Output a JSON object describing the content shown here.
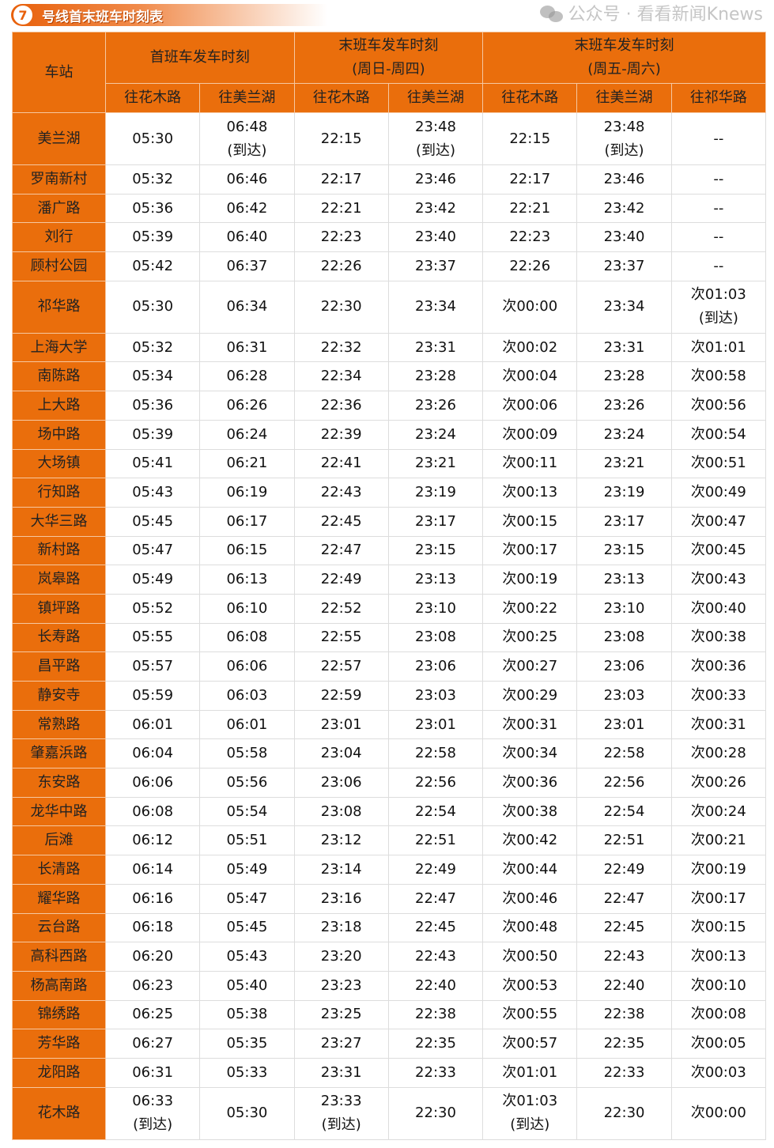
{
  "title": {
    "number": "7",
    "text": "号线首末班车时刻表"
  },
  "headers": {
    "station": "车站",
    "first": "首班车发车时刻",
    "last_weekday": "末班车发车时刻\n(周日-周四)",
    "last_weekend": "末班车发车时刻\n(周五-周六)",
    "sub": [
      "往花木路",
      "往美兰湖",
      "往花木路",
      "往美兰湖",
      "往花木路",
      "往美兰湖",
      "往祁华路"
    ]
  },
  "rows": [
    [
      "美兰湖",
      "05:30",
      "06:48\n(到达)",
      "22:15",
      "23:48\n(到达)",
      "22:15",
      "23:48\n(到达)",
      "--"
    ],
    [
      "罗南新村",
      "05:32",
      "06:46",
      "22:17",
      "23:46",
      "22:17",
      "23:46",
      "--"
    ],
    [
      "潘广路",
      "05:36",
      "06:42",
      "22:21",
      "23:42",
      "22:21",
      "23:42",
      "--"
    ],
    [
      "刘行",
      "05:39",
      "06:40",
      "22:23",
      "23:40",
      "22:23",
      "23:40",
      "--"
    ],
    [
      "顾村公园",
      "05:42",
      "06:37",
      "22:26",
      "23:37",
      "22:26",
      "23:37",
      "--"
    ],
    [
      "祁华路",
      "05:30",
      "06:34",
      "22:30",
      "23:34",
      "次00:00",
      "23:34",
      "次01:03\n(到达)"
    ],
    [
      "上海大学",
      "05:32",
      "06:31",
      "22:32",
      "23:31",
      "次00:02",
      "23:31",
      "次01:01"
    ],
    [
      "南陈路",
      "05:34",
      "06:28",
      "22:34",
      "23:28",
      "次00:04",
      "23:28",
      "次00:58"
    ],
    [
      "上大路",
      "05:36",
      "06:26",
      "22:36",
      "23:26",
      "次00:06",
      "23:26",
      "次00:56"
    ],
    [
      "场中路",
      "05:39",
      "06:24",
      "22:39",
      "23:24",
      "次00:09",
      "23:24",
      "次00:54"
    ],
    [
      "大场镇",
      "05:41",
      "06:21",
      "22:41",
      "23:21",
      "次00:11",
      "23:21",
      "次00:51"
    ],
    [
      "行知路",
      "05:43",
      "06:19",
      "22:43",
      "23:19",
      "次00:13",
      "23:19",
      "次00:49"
    ],
    [
      "大华三路",
      "05:45",
      "06:17",
      "22:45",
      "23:17",
      "次00:15",
      "23:17",
      "次00:47"
    ],
    [
      "新村路",
      "05:47",
      "06:15",
      "22:47",
      "23:15",
      "次00:17",
      "23:15",
      "次00:45"
    ],
    [
      "岚皋路",
      "05:49",
      "06:13",
      "22:49",
      "23:13",
      "次00:19",
      "23:13",
      "次00:43"
    ],
    [
      "镇坪路",
      "05:52",
      "06:10",
      "22:52",
      "23:10",
      "次00:22",
      "23:10",
      "次00:40"
    ],
    [
      "长寿路",
      "05:55",
      "06:08",
      "22:55",
      "23:08",
      "次00:25",
      "23:08",
      "次00:38"
    ],
    [
      "昌平路",
      "05:57",
      "06:06",
      "22:57",
      "23:06",
      "次00:27",
      "23:06",
      "次00:36"
    ],
    [
      "静安寺",
      "05:59",
      "06:03",
      "22:59",
      "23:03",
      "次00:29",
      "23:03",
      "次00:33"
    ],
    [
      "常熟路",
      "06:01",
      "06:01",
      "23:01",
      "23:01",
      "次00:31",
      "23:01",
      "次00:31"
    ],
    [
      "肇嘉浜路",
      "06:04",
      "05:58",
      "23:04",
      "22:58",
      "次00:34",
      "22:58",
      "次00:28"
    ],
    [
      "东安路",
      "06:06",
      "05:56",
      "23:06",
      "22:56",
      "次00:36",
      "22:56",
      "次00:26"
    ],
    [
      "龙华中路",
      "06:08",
      "05:54",
      "23:08",
      "22:54",
      "次00:38",
      "22:54",
      "次00:24"
    ],
    [
      "后滩",
      "06:12",
      "05:51",
      "23:12",
      "22:51",
      "次00:42",
      "22:51",
      "次00:21"
    ],
    [
      "长清路",
      "06:14",
      "05:49",
      "23:14",
      "22:49",
      "次00:44",
      "22:49",
      "次00:19"
    ],
    [
      "耀华路",
      "06:16",
      "05:47",
      "23:16",
      "22:47",
      "次00:46",
      "22:47",
      "次00:17"
    ],
    [
      "云台路",
      "06:18",
      "05:45",
      "23:18",
      "22:45",
      "次00:48",
      "22:45",
      "次00:15"
    ],
    [
      "高科西路",
      "06:20",
      "05:43",
      "23:20",
      "22:43",
      "次00:50",
      "22:43",
      "次00:13"
    ],
    [
      "杨高南路",
      "06:23",
      "05:40",
      "23:23",
      "22:40",
      "次00:53",
      "22:40",
      "次00:10"
    ],
    [
      "锦绣路",
      "06:25",
      "05:38",
      "23:25",
      "22:38",
      "次00:55",
      "22:38",
      "次00:08"
    ],
    [
      "芳华路",
      "06:27",
      "05:35",
      "23:27",
      "22:35",
      "次00:57",
      "22:35",
      "次00:05"
    ],
    [
      "龙阳路",
      "06:31",
      "05:33",
      "23:31",
      "22:33",
      "次01:01",
      "22:33",
      "次00:03"
    ],
    [
      "花木路",
      "06:33\n(到达)",
      "05:30",
      "23:33\n(到达)",
      "22:30",
      "次01:03\n(到达)",
      "22:30",
      "次00:00"
    ]
  ],
  "watermark": "公众号 · 看看新闻Knews",
  "colors": {
    "header_orange": "#ea6e0c"
  }
}
